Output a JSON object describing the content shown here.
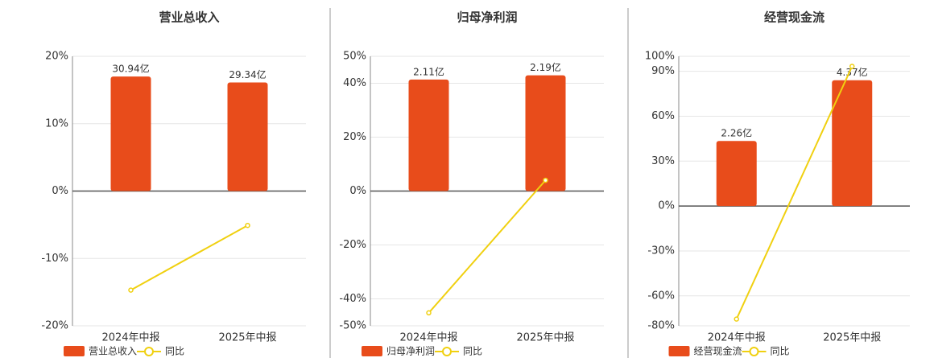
{
  "chart_data": [
    {
      "type": "bar",
      "title": "营业总收入",
      "categories": [
        "2024年中报",
        "2025年中报"
      ],
      "series": [
        {
          "name": "营业总收入",
          "type": "bar",
          "axis": "y2",
          "color": "#e84c1b",
          "values": [
            30.94,
            29.34
          ],
          "value_labels": [
            "30.94亿",
            "29.34亿"
          ]
        },
        {
          "name": "同比",
          "type": "line",
          "color": "#f0d010",
          "values": [
            -14.7,
            -5.1
          ]
        }
      ],
      "ylim": [
        -20,
        20
      ],
      "yticks": [
        {
          "value": -20,
          "label": "-20%"
        },
        {
          "value": -10,
          "label": "-10%"
        },
        {
          "value": 0,
          "label": "0%"
        },
        {
          "value": 10,
          "label": "10%"
        },
        {
          "value": 20,
          "label": "20%"
        }
      ],
      "y2lim": [
        -36.4,
        36.4
      ],
      "grid": true
    },
    {
      "type": "bar",
      "title": "归母净利润",
      "categories": [
        "2024年中报",
        "2025年中报"
      ],
      "series": [
        {
          "name": "归母净利润",
          "type": "bar",
          "axis": "y2",
          "color": "#e84c1b",
          "values": [
            2.11,
            2.19
          ],
          "value_labels": [
            "2.11亿",
            "2.19亿"
          ]
        },
        {
          "name": "同比",
          "type": "line",
          "color": "#f0d010",
          "values": [
            -45.2,
            4
          ]
        }
      ],
      "ylim": [
        -50,
        50
      ],
      "yticks": [
        {
          "value": -50,
          "label": "-50%"
        },
        {
          "value": -40,
          "label": "-40%"
        },
        {
          "value": -20,
          "label": "-20%"
        },
        {
          "value": 0,
          "label": "0%"
        },
        {
          "value": 20,
          "label": "20%"
        },
        {
          "value": 40,
          "label": "40%"
        },
        {
          "value": 50,
          "label": "50%"
        }
      ],
      "y2lim": [
        -2.55,
        2.55
      ],
      "grid": true
    },
    {
      "type": "bar",
      "title": "经营现金流",
      "categories": [
        "2024年中报",
        "2025年中报"
      ],
      "series": [
        {
          "name": "经营现金流",
          "type": "bar",
          "axis": "y2",
          "color": "#e84c1b",
          "values": [
            2.26,
            4.37
          ],
          "value_labels": [
            "2.26亿",
            "4.37亿"
          ]
        },
        {
          "name": "同比",
          "type": "line",
          "color": "#f0d010",
          "values": [
            -75.5,
            93.3
          ]
        }
      ],
      "ylim": [
        -80,
        100
      ],
      "yticks": [
        {
          "value": -80,
          "label": "-80%"
        },
        {
          "value": -60,
          "label": "-60%"
        },
        {
          "value": -30,
          "label": "-30%"
        },
        {
          "value": 0,
          "label": "0%"
        },
        {
          "value": 30,
          "label": "30%"
        },
        {
          "value": 60,
          "label": "60%"
        },
        {
          "value": 90,
          "label": "90%"
        },
        {
          "value": 100,
          "label": "100%"
        }
      ],
      "y2lim": [
        -4.16,
        5.2
      ],
      "grid": true
    }
  ]
}
